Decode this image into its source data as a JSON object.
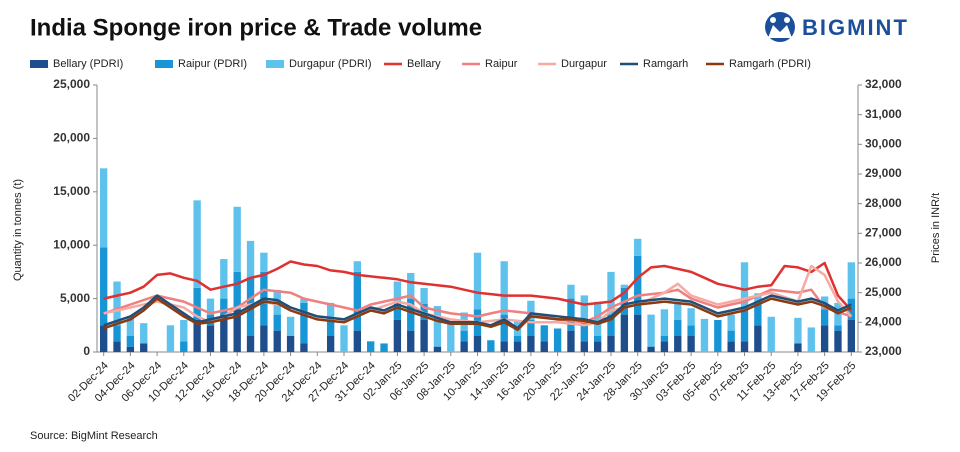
{
  "chart_data": {
    "type": "combo",
    "title": "India Sponge iron price & Trade volume",
    "logo": "BIGMINT",
    "source": "Source: BigMint Research",
    "y_label": "Quantity in tonnes (t)",
    "y2_label": "Prices in INR/t",
    "categories": [
      "02-Dec-24",
      null,
      "04-Dec-24",
      null,
      "06-Dec-24",
      null,
      "10-Dec-24",
      null,
      "12-Dec-24",
      null,
      "16-Dec-24",
      null,
      "18-Dec-24",
      null,
      "20-Dec-24",
      null,
      "24-Dec-24",
      null,
      "27-Dec-24",
      null,
      "31-Dec-24",
      null,
      "02-Jan-25",
      null,
      "06-Jan-25",
      null,
      "08-Jan-25",
      null,
      "10-Jan-25",
      null,
      "14-Jan-25",
      null,
      "16-Jan-25",
      null,
      "20-Jan-25",
      null,
      "22-Jan-25",
      null,
      "24-Jan-25",
      null,
      "28-Jan-25",
      null,
      "30-Jan-25",
      null,
      "03-Feb-25",
      null,
      "05-Feb-25",
      null,
      "07-Feb-25",
      null,
      "11-Feb-25",
      null,
      "13-Feb-25",
      null,
      "17-Feb-25",
      null,
      "19-Feb-25"
    ],
    "ylim": [
      0,
      25000
    ],
    "yticks": [
      0,
      {
        "value": 5000,
        "label": "5,000"
      },
      {
        "value": 10000,
        "label": "10,000"
      },
      {
        "value": 15000,
        "label": "15,000"
      },
      {
        "value": 20000,
        "label": "20,000"
      },
      {
        "value": 25000,
        "label": "25,000"
      }
    ],
    "y2lim": [
      23000,
      32000
    ],
    "y2ticks": [
      {
        "value": 23000,
        "label": "23,000"
      },
      {
        "value": 24000,
        "label": "24,000"
      },
      {
        "value": 25000,
        "label": "25,000"
      },
      {
        "value": 26000,
        "label": "26,000"
      },
      {
        "value": 27000,
        "label": "27,000"
      },
      {
        "value": 28000,
        "label": "28,000"
      },
      {
        "value": 29000,
        "label": "29,000"
      },
      {
        "value": 30000,
        "label": "30,000"
      },
      {
        "value": 31000,
        "label": "31,000"
      },
      {
        "value": 32000,
        "label": "32,000"
      }
    ],
    "series": [
      {
        "name": "Bellary (PDRI)",
        "type": "bar",
        "color": "#1f4e8c",
        "values": [
          2500,
          1000,
          500,
          800,
          0,
          0,
          0,
          3000,
          2500,
          3500,
          4000,
          1500,
          2500,
          2000,
          1500,
          800,
          0,
          1500,
          0,
          2000,
          0,
          0,
          3000,
          2000,
          3000,
          500,
          0,
          1000,
          1500,
          0,
          1000,
          1000,
          1500,
          1000,
          0,
          2000,
          1000,
          1000,
          1500,
          3500,
          3500,
          500,
          1000,
          1500,
          1500,
          0,
          0,
          1000,
          1000,
          2500,
          0,
          0,
          800,
          0,
          2500,
          2000,
          3000
        ]
      },
      {
        "name": "Raipur (PDRI)",
        "type": "bar",
        "color": "#1795d4",
        "values": [
          7300,
          1500,
          1000,
          0,
          0,
          0,
          1000,
          3000,
          1000,
          1500,
          3500,
          5500,
          5000,
          1500,
          0,
          3800,
          0,
          1500,
          0,
          5500,
          1000,
          800,
          1500,
          3000,
          1500,
          0,
          0,
          1000,
          2500,
          1100,
          2500,
          500,
          1500,
          1500,
          2200,
          3000,
          2000,
          500,
          2000,
          2500,
          5500,
          0,
          500,
          1500,
          1000,
          0,
          3000,
          1000,
          3000,
          2000,
          0,
          0,
          0,
          0,
          1500,
          500,
          2000
        ]
      },
      {
        "name": "Durgapur (PDRI)",
        "type": "bar",
        "color": "#5ec2ec",
        "values": [
          7400,
          4100,
          1700,
          1900,
          0,
          2500,
          2000,
          8200,
          1500,
          3700,
          6100,
          3400,
          1800,
          2300,
          1800,
          400,
          0,
          1600,
          2500,
          1000,
          0,
          0,
          2100,
          2400,
          1500,
          3800,
          2600,
          1700,
          5300,
          0,
          5000,
          1500,
          1800,
          0,
          0,
          1300,
          2300,
          3200,
          4000,
          300,
          1600,
          3000,
          2500,
          1600,
          1600,
          3100,
          0,
          1500,
          4400,
          1000,
          3300,
          0,
          2400,
          2300,
          1200,
          2100,
          3400
        ]
      },
      {
        "name": "Bellary",
        "type": "line",
        "axis": "y2",
        "color": "#e03131",
        "values": [
          24800,
          24900,
          25000,
          25200,
          25600,
          25650,
          25500,
          25400,
          25100,
          25200,
          25300,
          25500,
          25600,
          25800,
          26050,
          25950,
          25900,
          25750,
          25700,
          25600,
          25550,
          25500,
          25450,
          25350,
          25300,
          25250,
          25200,
          25100,
          25000,
          24950,
          24900,
          24900,
          24900,
          24850,
          24800,
          24700,
          24600,
          24650,
          24700,
          25000,
          25500,
          25850,
          25900,
          25800,
          25700,
          25500,
          25300,
          25200,
          25100,
          25200,
          25250,
          25900,
          25850,
          25700,
          26000,
          24900,
          24400
        ]
      },
      {
        "name": "Raipur",
        "type": "line",
        "axis": "y2",
        "color": "#f07f7f",
        "values": [
          24300,
          24450,
          24600,
          24750,
          24900,
          24800,
          24700,
          24500,
          24300,
          24400,
          24500,
          24800,
          25100,
          25050,
          25000,
          24800,
          24700,
          24600,
          24500,
          24400,
          24600,
          24700,
          24800,
          24900,
          24500,
          24400,
          24300,
          24250,
          24200,
          24300,
          24400,
          24350,
          24300,
          24200,
          24100,
          24050,
          24000,
          24200,
          24500,
          24700,
          24900,
          24950,
          25000,
          25100,
          24800,
          24650,
          24500,
          24600,
          24700,
          24900,
          25100,
          25050,
          25000,
          25100,
          24500,
          24350,
          24200
        ]
      },
      {
        "name": "Durgapur",
        "type": "line",
        "axis": "y2",
        "color": "#f6aaa2",
        "values": [
          24300,
          24400,
          24500,
          24600,
          24700,
          24600,
          24500,
          24200,
          24000,
          24200,
          24500,
          24600,
          24700,
          24600,
          24500,
          24350,
          24200,
          24150,
          24100,
          24250,
          24400,
          24550,
          24700,
          24600,
          24300,
          24200,
          24100,
          24050,
          24000,
          24050,
          24100,
          24050,
          24000,
          24000,
          24000,
          23950,
          23900,
          24000,
          24400,
          24500,
          24600,
          24800,
          25000,
          25300,
          24900,
          24750,
          24600,
          24700,
          24800,
          24900,
          25000,
          24850,
          24700,
          25900,
          25600,
          24700,
          24200
        ]
      },
      {
        "name": "Ramgarh",
        "type": "line",
        "axis": "y2",
        "color": "#1f4e79",
        "values": [
          23900,
          24050,
          24200,
          24500,
          24900,
          24600,
          24300,
          24000,
          24100,
          24200,
          24300,
          24550,
          24800,
          24750,
          24500,
          24350,
          24200,
          24150,
          24100,
          24300,
          24500,
          24400,
          24600,
          24450,
          24300,
          24150,
          24000,
          24000,
          24000,
          23900,
          24100,
          23800,
          24300,
          24250,
          24200,
          24150,
          24100,
          24000,
          24200,
          24600,
          24700,
          24750,
          24800,
          24750,
          24700,
          24500,
          24300,
          24400,
          24500,
          24700,
          24900,
          24800,
          24700,
          24800,
          24650,
          24400,
          24600
        ]
      },
      {
        "name": "Ramgarh (PDRI)",
        "type": "line",
        "axis": "y2",
        "color": "#8b3a0f",
        "values": [
          23800,
          23950,
          24100,
          24400,
          24800,
          24500,
          24200,
          23950,
          24000,
          24100,
          24200,
          24450,
          24700,
          24650,
          24400,
          24250,
          24100,
          24050,
          24000,
          24200,
          24400,
          24300,
          24500,
          24350,
          24200,
          24050,
          23950,
          23950,
          23950,
          23850,
          24000,
          23750,
          24200,
          24150,
          24100,
          24100,
          24050,
          23950,
          24100,
          24500,
          24600,
          24650,
          24700,
          24650,
          24600,
          24400,
          24200,
          24300,
          24400,
          24600,
          24800,
          24700,
          24600,
          24700,
          24550,
          24300,
          24500
        ]
      }
    ]
  }
}
